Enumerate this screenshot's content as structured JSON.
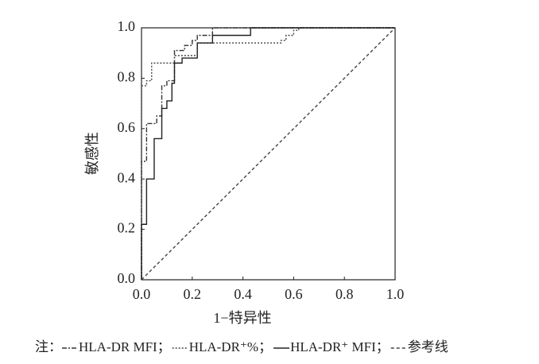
{
  "chart_data": {
    "type": "line",
    "xlabel": "1−特异性",
    "ylabel": "敏感性",
    "xlim": [
      0,
      1
    ],
    "ylim": [
      0,
      1
    ],
    "xticks": [
      {
        "value": 0,
        "label": "0.0"
      },
      0.2,
      0.4,
      0.6,
      0.8,
      {
        "value": 1,
        "label": "1.0"
      }
    ],
    "yticks": [
      {
        "value": 0,
        "label": "0.0"
      },
      0.2,
      0.4,
      0.6,
      0.8,
      {
        "value": 1,
        "label": "1.0"
      }
    ],
    "legend_note": "注：",
    "legend_separator": "；",
    "series": [
      {
        "name": "HLA-DR MFI",
        "color": "#333333",
        "dash": "6,2,2,2",
        "x": [
          0,
          0,
          0.02,
          0.02,
          0.06,
          0.06,
          0.08,
          0.08,
          0.1,
          0.1,
          0.13,
          0.13,
          0.17,
          0.17,
          0.2,
          0.2,
          0.22,
          0.22,
          0.28,
          0.28,
          1.0
        ],
        "values": [
          0,
          0.47,
          0.47,
          0.62,
          0.62,
          0.65,
          0.65,
          0.77,
          0.77,
          0.79,
          0.79,
          0.91,
          0.91,
          0.93,
          0.93,
          0.95,
          0.95,
          0.97,
          0.97,
          1.0,
          1.0
        ]
      },
      {
        "name": "HLA-DR⁺%",
        "color": "#444444",
        "dash": "2,2",
        "x": [
          0,
          0,
          0.02,
          0.02,
          0.04,
          0.04,
          0.13,
          0.13,
          0.22,
          0.22,
          0.55,
          0.55,
          0.57,
          0.57,
          0.6,
          0.6,
          0.62,
          0.62,
          1.0
        ],
        "values": [
          0,
          0.77,
          0.77,
          0.79,
          0.79,
          0.86,
          0.86,
          0.89,
          0.89,
          0.94,
          0.94,
          0.95,
          0.95,
          0.97,
          0.97,
          0.99,
          0.99,
          1.0,
          1.0
        ]
      },
      {
        "name": "HLA-DR⁺ MFI",
        "color": "#222222",
        "dash": "",
        "x": [
          0,
          0,
          0.02,
          0.02,
          0.05,
          0.05,
          0.08,
          0.08,
          0.1,
          0.1,
          0.12,
          0.12,
          0.13,
          0.13,
          0.16,
          0.16,
          0.22,
          0.22,
          0.28,
          0.28,
          0.43,
          0.43,
          1.0
        ],
        "values": [
          0,
          0.22,
          0.22,
          0.4,
          0.4,
          0.56,
          0.56,
          0.68,
          0.68,
          0.71,
          0.71,
          0.78,
          0.78,
          0.86,
          0.86,
          0.88,
          0.88,
          0.94,
          0.94,
          0.97,
          0.97,
          1.0,
          1.0
        ]
      },
      {
        "name": "参考线",
        "color": "#444444",
        "dash": "4,3",
        "x": [
          0,
          1
        ],
        "values": [
          0,
          1
        ]
      }
    ]
  }
}
